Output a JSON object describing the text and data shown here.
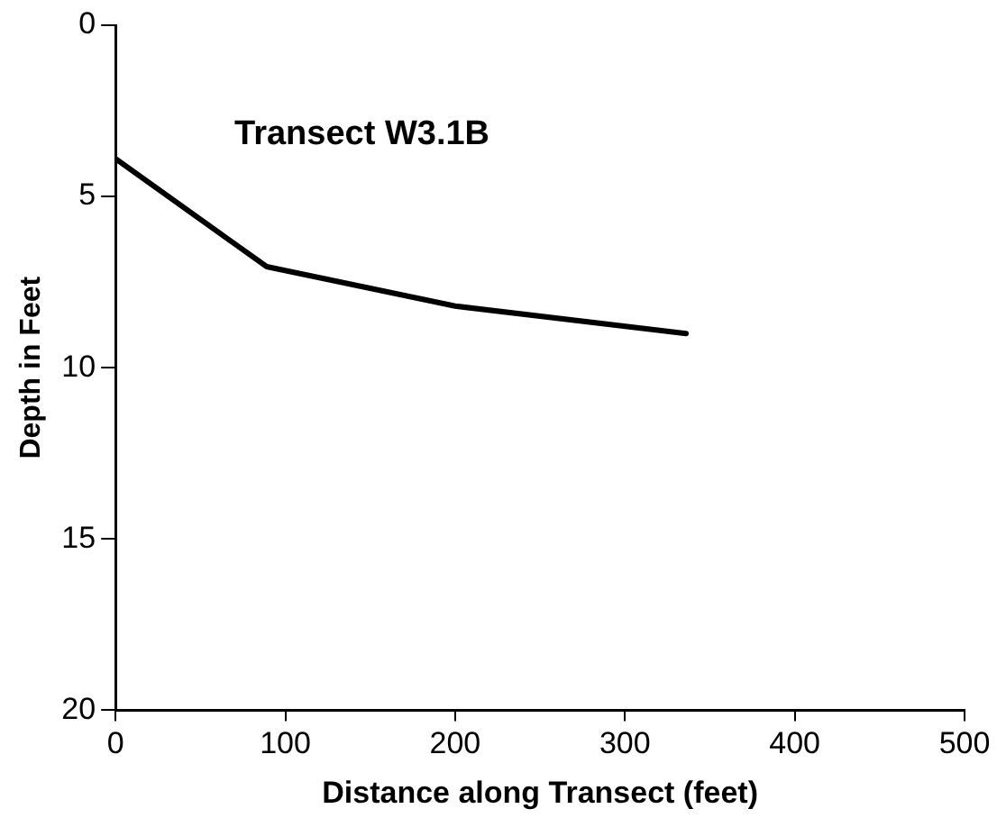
{
  "chart_data": {
    "type": "line",
    "title": "Transect W3.1B",
    "xlabel": "Distance along Transect (feet)",
    "ylabel": "Depth in Feet",
    "x": [
      0,
      89,
      200,
      336
    ],
    "series": [
      {
        "color": "#000000",
        "values": [
          3.9,
          7.05,
          8.2,
          9.0
        ]
      }
    ],
    "xlim": [
      0,
      500
    ],
    "xticks": [
      0,
      100,
      200,
      300,
      400,
      500
    ],
    "ylim": [
      20,
      0
    ],
    "yticks": [
      0,
      5,
      10,
      15,
      20
    ],
    "grid": false,
    "legend": false,
    "marker": "none",
    "line_style": "solid"
  }
}
